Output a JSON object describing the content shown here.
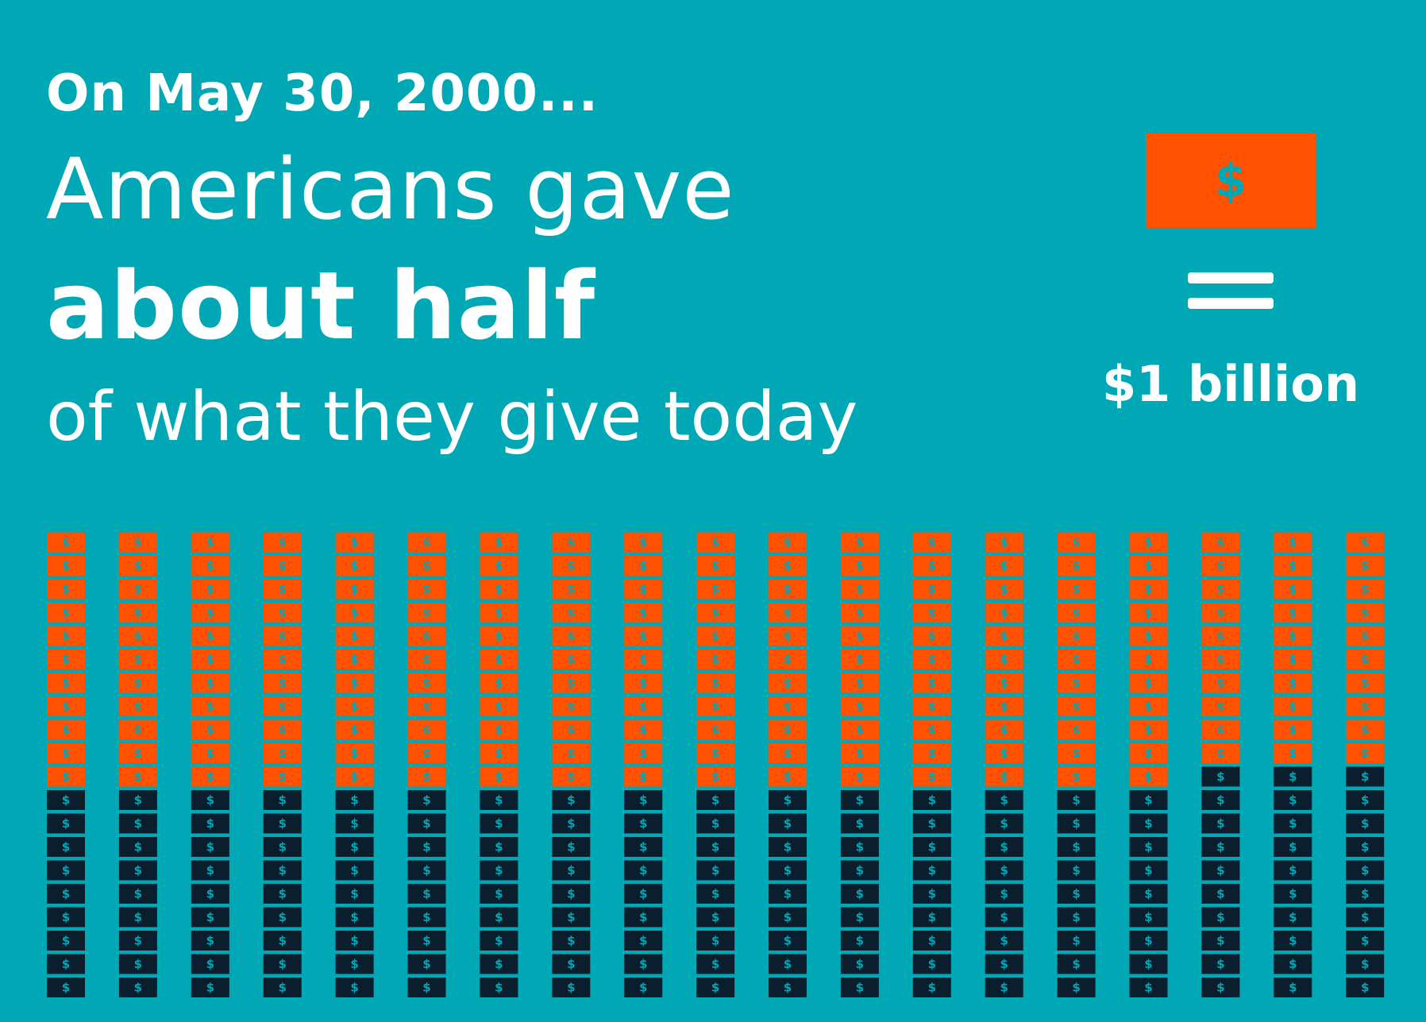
{
  "headline": {
    "date_line": "On May 30, 2000...",
    "line1": "Americans gave",
    "line2": "about half",
    "line3": "of what they give today"
  },
  "legend": {
    "symbol": "$",
    "equals": "=",
    "value_label": "$1 billion"
  },
  "colors": {
    "background": "#00A7B5",
    "then": "#FF5100",
    "today": "#0A1E2E",
    "glyph": "#00A7B5"
  },
  "chart_data": {
    "type": "bar",
    "unit": "$1 billion",
    "categories": [
      "1",
      "2",
      "3",
      "4",
      "5",
      "6",
      "7",
      "8",
      "9",
      "10",
      "11",
      "12",
      "13",
      "14",
      "15",
      "16",
      "17",
      "18",
      "19"
    ],
    "series": [
      {
        "key": "today",
        "values": [
          20,
          20,
          20,
          20,
          20,
          20,
          20,
          20,
          20,
          20,
          20,
          20,
          20,
          20,
          20,
          20,
          20,
          20,
          20
        ]
      },
      {
        "key": "then",
        "values": [
          11,
          11,
          11,
          11,
          11,
          11,
          11,
          11,
          11,
          11,
          11,
          11,
          11,
          11,
          11,
          11,
          10,
          10,
          10
        ]
      }
    ],
    "total_today": 380,
    "total_then": 206,
    "bill_symbol": "$",
    "grid": false
  }
}
